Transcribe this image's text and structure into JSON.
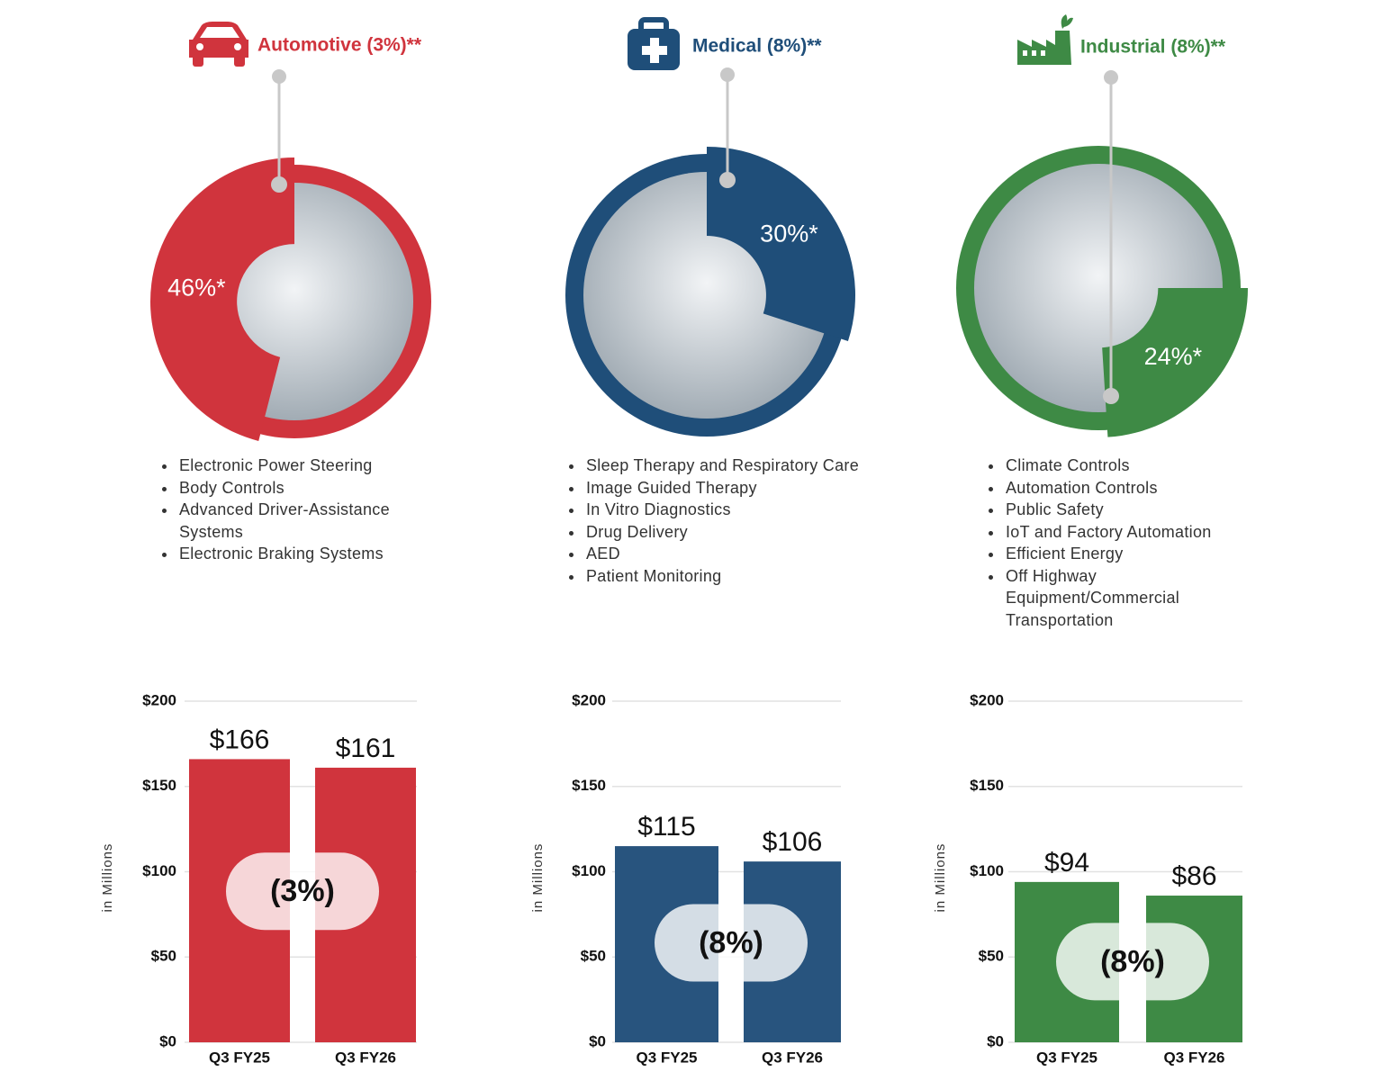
{
  "segments": [
    {
      "title": "Automotive (3%)**",
      "bullets": [
        "Electronic Power Steering",
        "Body Controls",
        "Advanced Driver-Assistance Systems",
        "Electronic Braking Systems"
      ]
    },
    {
      "title": "Medical (8%)**",
      "bullets": [
        "Sleep Therapy and Respiratory Care",
        "Image Guided Therapy",
        "In Vitro Diagnostics",
        "Drug Delivery",
        "AED",
        "Patient Monitoring"
      ]
    },
    {
      "title": "Industrial (8%)**",
      "bullets": [
        "Climate Controls",
        "Automation Controls",
        "Public Safety",
        "IoT and Factory Automation",
        "Efficient Energy",
        "Off Highway Equipment/Commercial Transportation"
      ]
    }
  ],
  "chart_data": [
    {
      "type": "pie",
      "values": [
        46
      ],
      "value_labels": [
        "46%*"
      ],
      "color": "#d0343d"
    },
    {
      "type": "pie",
      "values": [
        30
      ],
      "value_labels": [
        "30%*"
      ],
      "color": "#1f4e79"
    },
    {
      "type": "pie",
      "values": [
        24
      ],
      "value_labels": [
        "24%*"
      ],
      "color": "#3e8a45"
    },
    {
      "type": "bar",
      "categories": [
        "Q3 FY25",
        "Q3 FY26"
      ],
      "values": [
        166,
        161
      ],
      "value_labels": [
        "$166",
        "$161"
      ],
      "color": "#d0343d",
      "ylabel": "in Millions",
      "annotation": "(3%)",
      "ylim": [
        0,
        200
      ],
      "grid": true,
      "yticks": [
        {
          "value": 0,
          "label": "$0"
        },
        {
          "value": 50,
          "label": "$50"
        },
        {
          "value": 100,
          "label": "$100"
        },
        {
          "value": 150,
          "label": "$150"
        },
        {
          "value": 200,
          "label": "$200"
        }
      ]
    },
    {
      "type": "bar",
      "categories": [
        "Q3 FY25",
        "Q3 FY26"
      ],
      "values": [
        115,
        106
      ],
      "value_labels": [
        "$115",
        "$106"
      ],
      "color": "#28547e",
      "ylabel": "in Millions",
      "annotation": "(8%)",
      "ylim": [
        0,
        200
      ],
      "grid": true,
      "yticks": [
        {
          "value": 0,
          "label": "$0"
        },
        {
          "value": 50,
          "label": "$50"
        },
        {
          "value": 100,
          "label": "$100"
        },
        {
          "value": 150,
          "label": "$150"
        },
        {
          "value": 200,
          "label": "$200"
        }
      ]
    },
    {
      "type": "bar",
      "categories": [
        "Q3 FY25",
        "Q3 FY26"
      ],
      "values": [
        94,
        86
      ],
      "value_labels": [
        "$94",
        "$86"
      ],
      "color": "#3e8a45",
      "ylabel": "in Millions",
      "annotation": "(8%)",
      "ylim": [
        0,
        200
      ],
      "grid": true,
      "yticks": [
        {
          "value": 0,
          "label": "$0"
        },
        {
          "value": 50,
          "label": "$50"
        },
        {
          "value": 100,
          "label": "$100"
        },
        {
          "value": 150,
          "label": "$150"
        },
        {
          "value": 200,
          "label": "$200"
        }
      ]
    }
  ]
}
